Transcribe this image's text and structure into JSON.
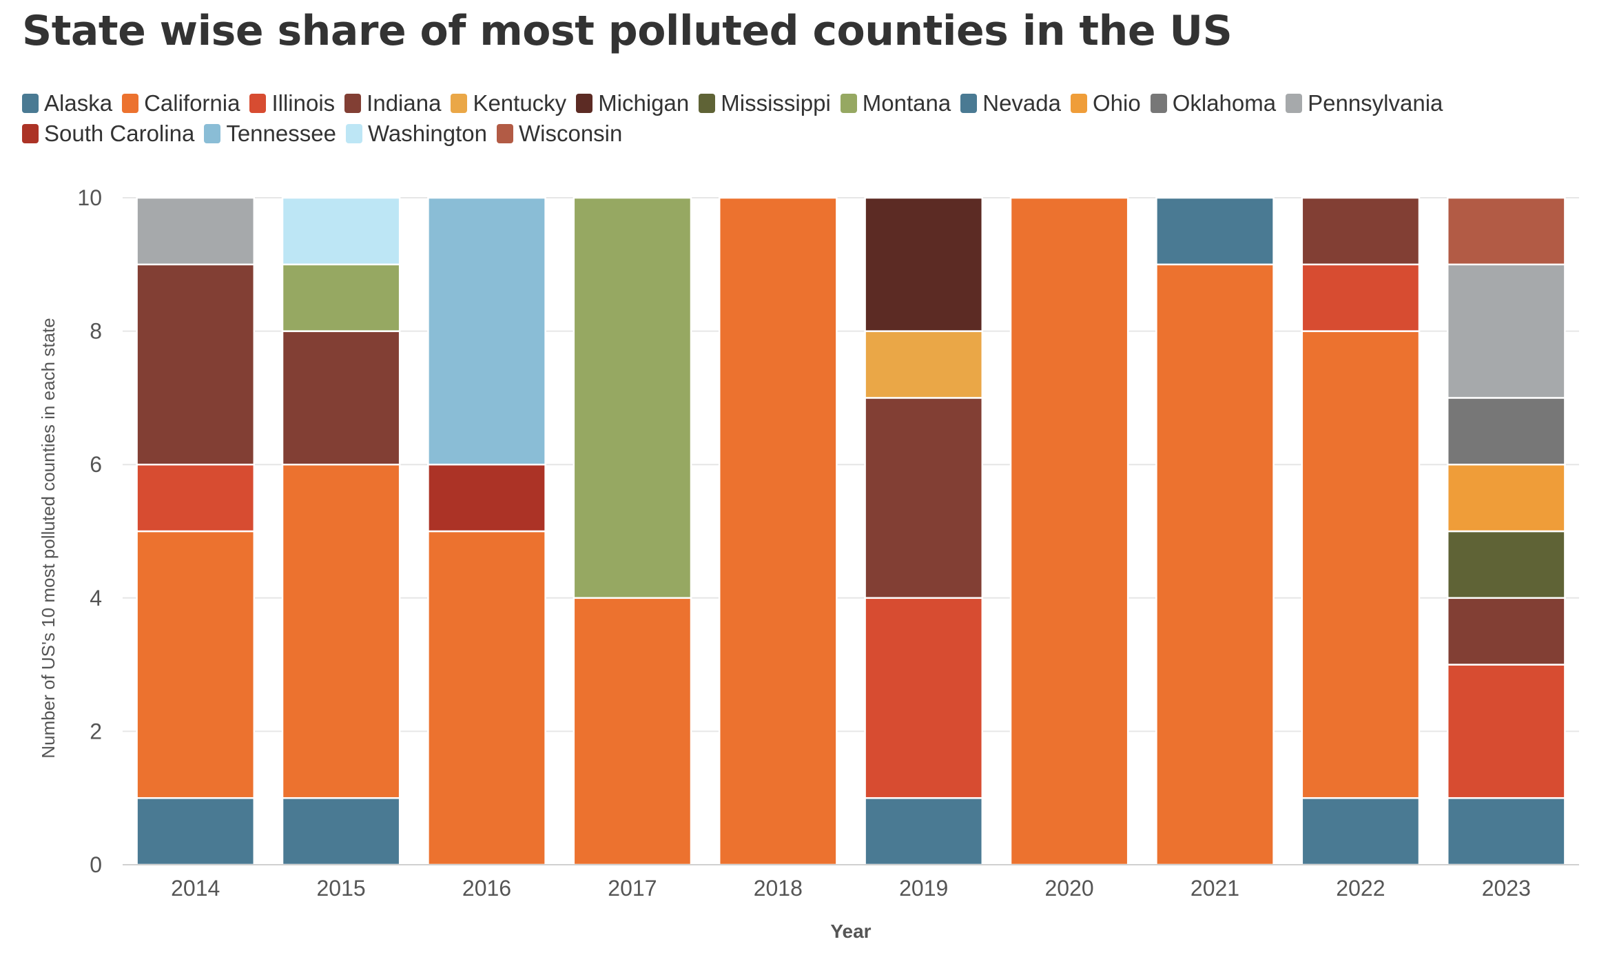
{
  "title": "State wise share of most polluted counties in the US",
  "chart_data": {
    "type": "bar",
    "stacked": true,
    "title": "State wise share of most polluted counties in the US",
    "xlabel": "Year",
    "ylabel": "Number of US's 10 most polluted counties in each state",
    "ylim": [
      0,
      10
    ],
    "yticks": [
      0,
      2,
      4,
      6,
      8,
      10
    ],
    "grid": true,
    "legend_position": "top",
    "categories": [
      "2014",
      "2015",
      "2016",
      "2017",
      "2018",
      "2019",
      "2020",
      "2021",
      "2022",
      "2023"
    ],
    "series": [
      {
        "name": "Alaska",
        "color": "#4a7a93",
        "values": [
          1,
          1,
          0,
          0,
          0,
          1,
          0,
          0,
          1,
          1
        ]
      },
      {
        "name": "California",
        "color": "#ec722f",
        "values": [
          4,
          5,
          5,
          4,
          10,
          0,
          10,
          9,
          7,
          0
        ]
      },
      {
        "name": "Illinois",
        "color": "#d74c31",
        "values": [
          1,
          0,
          0,
          0,
          0,
          3,
          0,
          0,
          1,
          2
        ]
      },
      {
        "name": "Indiana",
        "color": "#823f34",
        "values": [
          3,
          2,
          0,
          0,
          0,
          3,
          0,
          0,
          1,
          1
        ]
      },
      {
        "name": "Kentucky",
        "color": "#eaa747",
        "values": [
          0,
          0,
          0,
          0,
          0,
          1,
          0,
          0,
          0,
          0
        ]
      },
      {
        "name": "Michigan",
        "color": "#5c2b24",
        "values": [
          0,
          0,
          0,
          0,
          0,
          2,
          0,
          0,
          0,
          0
        ]
      },
      {
        "name": "Mississippi",
        "color": "#5f6336",
        "values": [
          0,
          0,
          0,
          0,
          0,
          0,
          0,
          0,
          0,
          1
        ]
      },
      {
        "name": "Montana",
        "color": "#96a862",
        "values": [
          0,
          1,
          0,
          6,
          0,
          0,
          0,
          0,
          0,
          0
        ]
      },
      {
        "name": "Nevada",
        "color": "#4a7a93",
        "values": [
          0,
          0,
          0,
          0,
          0,
          0,
          0,
          1,
          0,
          0
        ]
      },
      {
        "name": "Ohio",
        "color": "#ef9d39",
        "values": [
          0,
          0,
          0,
          0,
          0,
          0,
          0,
          0,
          0,
          1
        ]
      },
      {
        "name": "Oklahoma",
        "color": "#777777",
        "values": [
          0,
          0,
          0,
          0,
          0,
          0,
          0,
          0,
          0,
          1
        ]
      },
      {
        "name": "Pennsylvania",
        "color": "#a6a9ab",
        "values": [
          1,
          0,
          0,
          0,
          0,
          0,
          0,
          0,
          0,
          2
        ]
      },
      {
        "name": "South Carolina",
        "color": "#ac3326",
        "values": [
          0,
          0,
          1,
          0,
          0,
          0,
          0,
          0,
          0,
          0
        ]
      },
      {
        "name": "Tennessee",
        "color": "#8abdd6",
        "values": [
          0,
          0,
          4,
          0,
          0,
          0,
          0,
          0,
          0,
          0
        ]
      },
      {
        "name": "Washington",
        "color": "#bde6f5",
        "values": [
          0,
          1,
          0,
          0,
          0,
          0,
          0,
          0,
          0,
          0
        ]
      },
      {
        "name": "Wisconsin",
        "color": "#b25b45",
        "values": [
          0,
          0,
          0,
          0,
          0,
          0,
          0,
          0,
          0,
          1
        ]
      }
    ]
  }
}
